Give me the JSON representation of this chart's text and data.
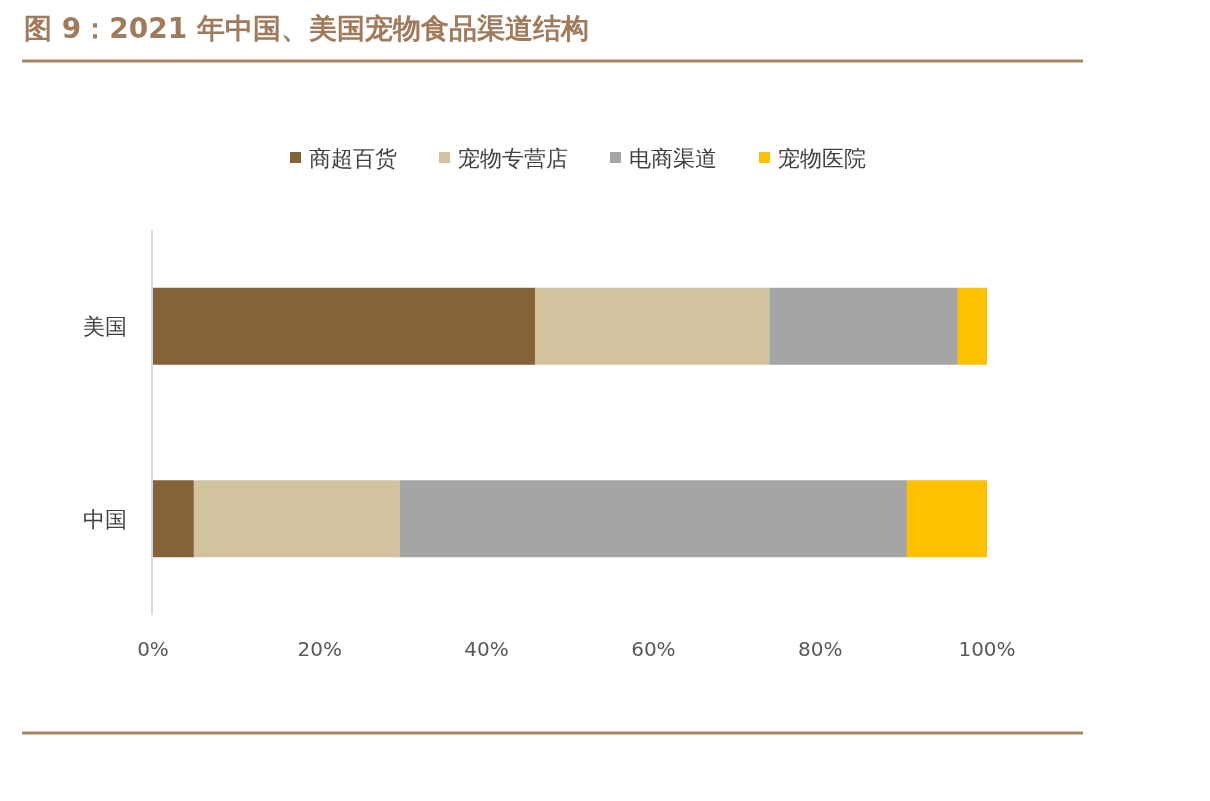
{
  "chart_data": {
    "type": "bar",
    "title": "图 9：2021 年中国、美国宠物食品渠道结构",
    "orientation": "horizontal",
    "stacked": true,
    "categories": [
      "美国",
      "中国"
    ],
    "series": [
      {
        "name": "商超百货",
        "color": "#856237",
        "values": [
          45.8,
          4.9
        ]
      },
      {
        "name": "宠物专营店",
        "color": "#d3c29e",
        "values": [
          28.1,
          24.7
        ]
      },
      {
        "name": "电商渠道",
        "color": "#a5a5a5",
        "values": [
          22.6,
          60.8
        ]
      },
      {
        "name": "宠物医院",
        "color": "#ffc000",
        "values": [
          3.5,
          9.6
        ]
      }
    ],
    "xlim": [
      0,
      100
    ],
    "xticks": [
      {
        "value": 0,
        "label": "0%"
      },
      {
        "value": 20,
        "label": "20%"
      },
      {
        "value": 40,
        "label": "40%"
      },
      {
        "value": 60,
        "label": "60%"
      },
      {
        "value": 80,
        "label": "80%"
      },
      {
        "value": 100,
        "label": "100%"
      }
    ],
    "legend": "top",
    "grid": false
  }
}
